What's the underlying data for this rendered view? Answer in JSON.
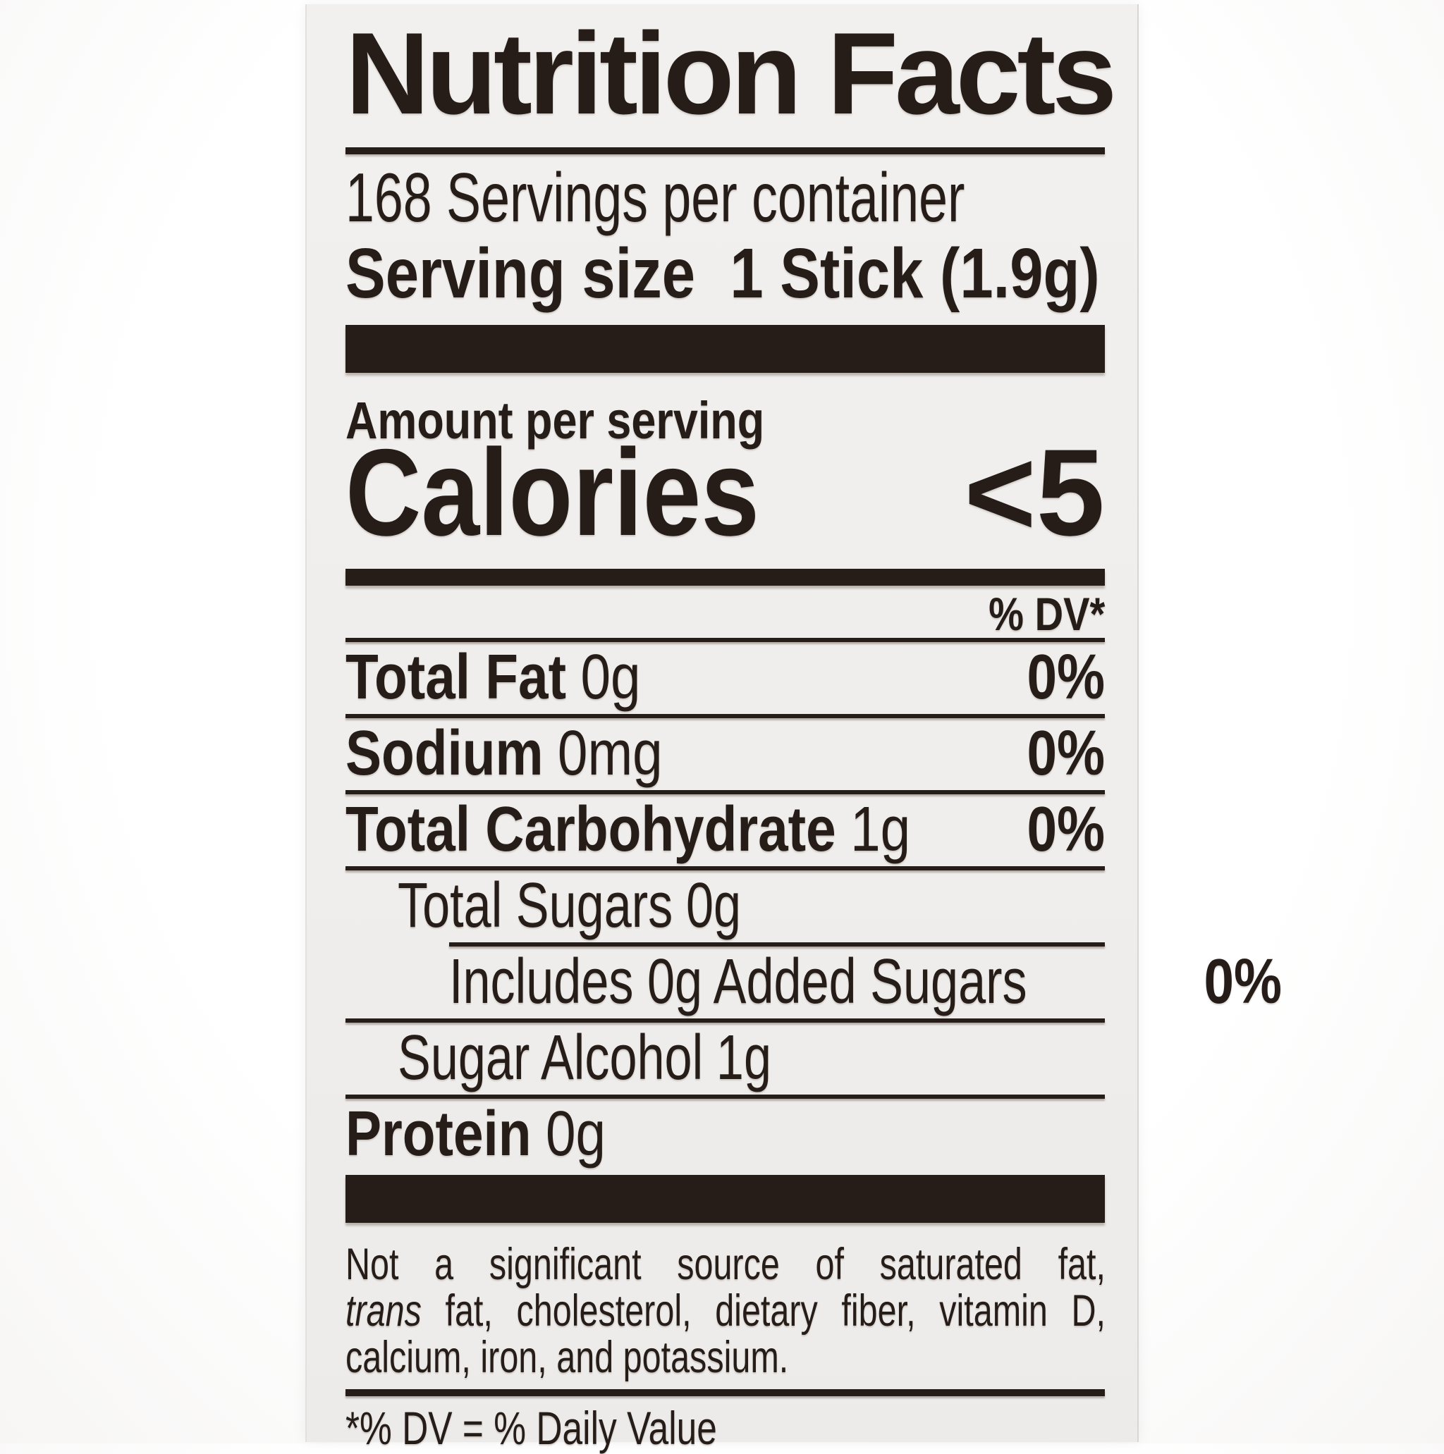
{
  "colors": {
    "ink": "#261d18",
    "card_background": "#f1efed",
    "page_background": "#ffffff"
  },
  "label": {
    "title": "Nutrition Facts",
    "servings_per_container": "168 Servings per container",
    "serving_size_label": "Serving size",
    "serving_size_value": "1 Stick (1.9g)",
    "amount_per_serving": "Amount per serving",
    "calories_label": "Calories",
    "calories_value": "<5",
    "dv_column_header": "% DV*",
    "rows": [
      {
        "name": "Total Fat",
        "value": "0g",
        "dv": "0%"
      },
      {
        "name": "Sodium",
        "value": "0mg",
        "dv": "0%"
      },
      {
        "name": "Total Carbohydrate",
        "value": "1g",
        "dv": "0%"
      },
      {
        "name": "Total Sugars",
        "value": "0g",
        "dv": ""
      },
      {
        "name": "Includes 0g Added Sugars",
        "value": "",
        "dv": "0%"
      },
      {
        "name": "Sugar Alcohol",
        "value": "1g",
        "dv": ""
      },
      {
        "name": "Protein",
        "value": "0g",
        "dv": ""
      }
    ],
    "footnote": {
      "line1": "Not a significant source of saturated fat,",
      "trans_word": "trans",
      "line2_rest": " fat, cholesterol, dietary fiber, vitamin D,",
      "line3": "calcium, iron, and potassium."
    },
    "dv_note": "*% DV = % Daily Value"
  }
}
